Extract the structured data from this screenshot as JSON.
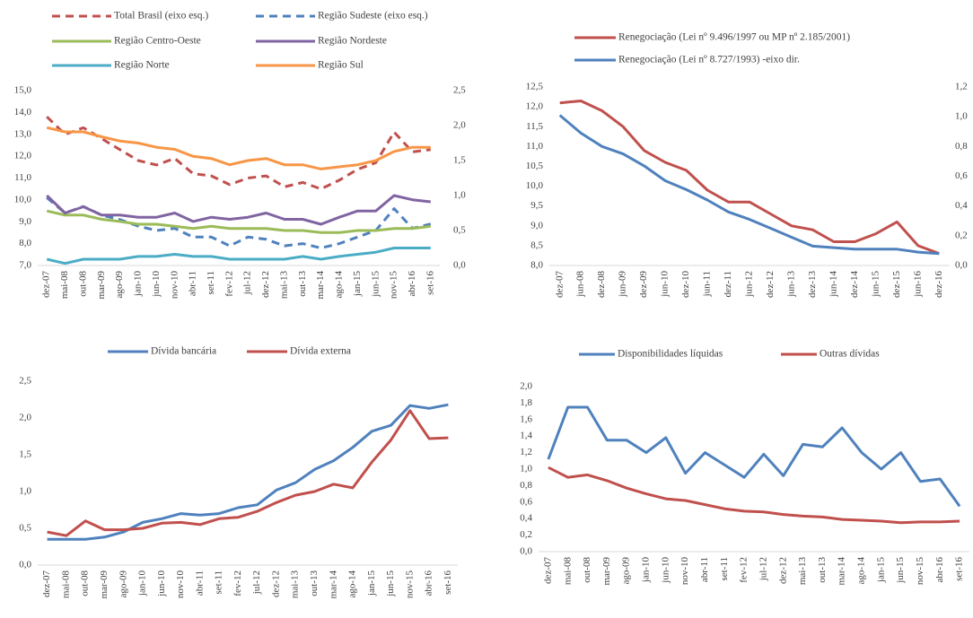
{
  "chart_data": [
    {
      "type": "line",
      "categories": [
        "dez-07",
        "mai-08",
        "out-08",
        "mar-09",
        "ago-09",
        "jan-10",
        "jun-10",
        "nov-10",
        "abr-11",
        "set-11",
        "fev-12",
        "jul-12",
        "dez-12",
        "mai-13",
        "out-13",
        "mar-14",
        "ago-14",
        "jan-15",
        "jun-15",
        "nov-15",
        "abr-16",
        "set-16"
      ],
      "ylim": [
        7,
        15
      ],
      "yticks": [
        {
          "value": 7,
          "label": "7,0"
        },
        {
          "value": 8,
          "label": "8,0"
        },
        {
          "value": 9,
          "label": "9,0"
        },
        {
          "value": 10,
          "label": "10,0"
        },
        {
          "value": 11,
          "label": "11,0"
        },
        {
          "value": 12,
          "label": "12,0"
        },
        {
          "value": 13,
          "label": "13,0"
        },
        {
          "value": 14,
          "label": "14,0"
        },
        {
          "value": 15,
          "label": "15,0"
        }
      ],
      "y2lim": [
        0,
        2.5
      ],
      "y2ticks": [
        {
          "value": 0,
          "label": "0,0"
        },
        {
          "value": 0.5,
          "label": "0,5"
        },
        {
          "value": 1,
          "label": "1,0"
        },
        {
          "value": 1.5,
          "label": "1,5"
        },
        {
          "value": 2,
          "label": "2,0"
        },
        {
          "value": 2.5,
          "label": "2,5"
        }
      ],
      "series": [
        {
          "name": "Total Brasil (eixo esq.)",
          "color": "#c0504d",
          "style": "dashed",
          "axis": "y",
          "values": [
            13.8,
            13.0,
            13.3,
            12.8,
            12.3,
            11.8,
            11.6,
            11.9,
            11.2,
            11.1,
            10.7,
            11.0,
            11.1,
            10.6,
            10.8,
            10.5,
            10.9,
            11.4,
            11.7,
            13.1,
            12.2,
            12.3
          ]
        },
        {
          "name": "Região Sudeste (eixo esq.)",
          "color": "#4f81bd",
          "style": "dashed",
          "axis": "y",
          "values": [
            10.1,
            9.4,
            9.7,
            9.3,
            9.1,
            8.8,
            8.6,
            8.7,
            8.3,
            8.3,
            7.9,
            8.3,
            8.2,
            7.9,
            8.0,
            7.8,
            8.0,
            8.3,
            8.6,
            9.6,
            8.7,
            8.9
          ]
        },
        {
          "name": "Região Centro-Oeste",
          "color": "#9bbb59",
          "style": "solid",
          "axis": "y2",
          "values": [
            0.78,
            0.72,
            0.72,
            0.66,
            0.63,
            0.59,
            0.59,
            0.56,
            0.53,
            0.56,
            0.53,
            0.53,
            0.53,
            0.5,
            0.5,
            0.47,
            0.47,
            0.5,
            0.5,
            0.53,
            0.53,
            0.56
          ]
        },
        {
          "name": "Região Nordeste",
          "color": "#8064a2",
          "style": "solid",
          "axis": "y2",
          "values": [
            1.0,
            0.75,
            0.84,
            0.72,
            0.72,
            0.69,
            0.69,
            0.75,
            0.63,
            0.69,
            0.66,
            0.69,
            0.75,
            0.66,
            0.66,
            0.59,
            0.69,
            0.78,
            0.78,
            1.0,
            0.94,
            0.91
          ]
        },
        {
          "name": "Região Norte",
          "color": "#4bacc6",
          "style": "solid",
          "axis": "y2",
          "values": [
            0.09,
            0.03,
            0.09,
            0.09,
            0.09,
            0.13,
            0.13,
            0.16,
            0.13,
            0.13,
            0.09,
            0.09,
            0.09,
            0.09,
            0.13,
            0.09,
            0.13,
            0.16,
            0.19,
            0.25,
            0.25,
            0.25
          ]
        },
        {
          "name": "Região Sul",
          "color": "#f79646",
          "style": "solid",
          "axis": "y2",
          "values": [
            1.97,
            1.91,
            1.91,
            1.84,
            1.78,
            1.75,
            1.69,
            1.66,
            1.56,
            1.53,
            1.44,
            1.5,
            1.53,
            1.44,
            1.44,
            1.38,
            1.41,
            1.44,
            1.5,
            1.63,
            1.69,
            1.69
          ]
        }
      ]
    },
    {
      "type": "line",
      "categories": [
        "dez-07",
        "jun-08",
        "dez-08",
        "jun-09",
        "dez-09",
        "jun-10",
        "dez-10",
        "jun-11",
        "dez-11",
        "jun-12",
        "dez-12",
        "jun-13",
        "dez-13",
        "jun-14",
        "dez-14",
        "jun-15",
        "dez-15",
        "jun-16",
        "dez-16"
      ],
      "ylim": [
        8,
        12.5
      ],
      "yticks": [
        {
          "value": 8,
          "label": "8,0"
        },
        {
          "value": 8.5,
          "label": "8,5"
        },
        {
          "value": 9,
          "label": "9,0"
        },
        {
          "value": 9.5,
          "label": "9,5"
        },
        {
          "value": 10,
          "label": "10,0"
        },
        {
          "value": 10.5,
          "label": "10,5"
        },
        {
          "value": 11,
          "label": "11,0"
        },
        {
          "value": 11.5,
          "label": "11,5"
        },
        {
          "value": 12,
          "label": "12,0"
        },
        {
          "value": 12.5,
          "label": "12,5"
        }
      ],
      "y2lim": [
        0,
        1.2
      ],
      "y2ticks": [
        {
          "value": 0,
          "label": "0,0"
        },
        {
          "value": 0.2,
          "label": "0,2"
        },
        {
          "value": 0.4,
          "label": "0,4"
        },
        {
          "value": 0.6,
          "label": "0,6"
        },
        {
          "value": 0.8,
          "label": "0,8"
        },
        {
          "value": 1,
          "label": "1,0"
        },
        {
          "value": 1.2,
          "label": "1,2"
        }
      ],
      "series": [
        {
          "name": "Renegociação (Lei nº 9.496/1997 ou MP nº 2.185/2001)",
          "color": "#c0504d",
          "style": "solid",
          "axis": "y",
          "values": [
            12.1,
            12.15,
            11.9,
            11.5,
            10.9,
            10.6,
            10.4,
            9.9,
            9.6,
            9.6,
            9.3,
            9.0,
            8.9,
            8.6,
            8.6,
            8.8,
            9.1,
            8.5,
            8.3
          ]
        },
        {
          "name": "Renegociação (Lei nº 8.727/1993) -eixo dir.",
          "color": "#4f81bd",
          "style": "solid",
          "axis": "y2",
          "values": [
            1.01,
            0.89,
            0.8,
            0.75,
            0.67,
            0.57,
            0.51,
            0.44,
            0.36,
            0.31,
            0.25,
            0.19,
            0.13,
            0.12,
            0.11,
            0.11,
            0.11,
            0.09,
            0.08
          ]
        }
      ]
    },
    {
      "type": "line",
      "categories": [
        "dez-07",
        "mai-08",
        "out-08",
        "mar-09",
        "ago-09",
        "jan-10",
        "jun-10",
        "nov-10",
        "abr-11",
        "set-11",
        "fev-12",
        "jul-12",
        "dez-12",
        "mai-13",
        "out-13",
        "mar-14",
        "ago-14",
        "jan-15",
        "jun-15",
        "nov-15",
        "abr-16",
        "set-16"
      ],
      "ylim": [
        0,
        2.5
      ],
      "yticks": [
        {
          "value": 0,
          "label": "0,0"
        },
        {
          "value": 0.5,
          "label": "0,5"
        },
        {
          "value": 1,
          "label": "1,0"
        },
        {
          "value": 1.5,
          "label": "1,5"
        },
        {
          "value": 2,
          "label": "2,0"
        },
        {
          "value": 2.5,
          "label": "2,5"
        }
      ],
      "series": [
        {
          "name": "Dívida bancária",
          "color": "#4f81bd",
          "style": "solid",
          "axis": "y",
          "values": [
            0.35,
            0.35,
            0.35,
            0.38,
            0.45,
            0.58,
            0.63,
            0.7,
            0.68,
            0.7,
            0.78,
            0.82,
            1.02,
            1.12,
            1.3,
            1.42,
            1.6,
            1.82,
            1.9,
            2.17,
            2.13,
            2.18
          ]
        },
        {
          "name": "Dívida externa",
          "color": "#c0504d",
          "style": "solid",
          "axis": "y",
          "values": [
            0.45,
            0.4,
            0.6,
            0.48,
            0.48,
            0.5,
            0.57,
            0.58,
            0.55,
            0.63,
            0.65,
            0.73,
            0.85,
            0.95,
            1.0,
            1.1,
            1.05,
            1.4,
            1.7,
            2.1,
            1.72,
            1.73
          ]
        }
      ]
    },
    {
      "type": "line",
      "categories": [
        "dez-07",
        "mai-08",
        "out-08",
        "mar-09",
        "ago-09",
        "jan-10",
        "jun-10",
        "nov-10",
        "abr-11",
        "set-11",
        "fev-12",
        "jul-12",
        "dez-12",
        "mai-13",
        "out-13",
        "mar-14",
        "ago-14",
        "jan-15",
        "jun-15",
        "nov-15",
        "abr-16",
        "set-16"
      ],
      "ylim": [
        0,
        2
      ],
      "yticks": [
        {
          "value": 0,
          "label": "0,0"
        },
        {
          "value": 0.2,
          "label": "0,2"
        },
        {
          "value": 0.4,
          "label": "0,4"
        },
        {
          "value": 0.6,
          "label": "0,6"
        },
        {
          "value": 0.8,
          "label": "0,8"
        },
        {
          "value": 1,
          "label": "1,0"
        },
        {
          "value": 1.2,
          "label": "1,2"
        },
        {
          "value": 1.4,
          "label": "1,4"
        },
        {
          "value": 1.6,
          "label": "1,6"
        },
        {
          "value": 1.8,
          "label": "1,8"
        },
        {
          "value": 2,
          "label": "2,0"
        }
      ],
      "series": [
        {
          "name": "Disponibilidades líquidas",
          "color": "#4f81bd",
          "style": "solid",
          "axis": "y",
          "values": [
            1.12,
            1.75,
            1.75,
            1.35,
            1.35,
            1.2,
            1.38,
            0.95,
            1.2,
            1.05,
            0.9,
            1.18,
            0.92,
            1.3,
            1.27,
            1.5,
            1.2,
            1.0,
            1.2,
            0.85,
            0.88,
            0.55
          ]
        },
        {
          "name": "Outras dívidas",
          "color": "#c0504d",
          "style": "solid",
          "axis": "y",
          "values": [
            1.02,
            0.9,
            0.93,
            0.86,
            0.77,
            0.7,
            0.64,
            0.62,
            0.57,
            0.52,
            0.49,
            0.48,
            0.45,
            0.43,
            0.42,
            0.39,
            0.38,
            0.37,
            0.35,
            0.36,
            0.36,
            0.37
          ]
        }
      ]
    }
  ]
}
